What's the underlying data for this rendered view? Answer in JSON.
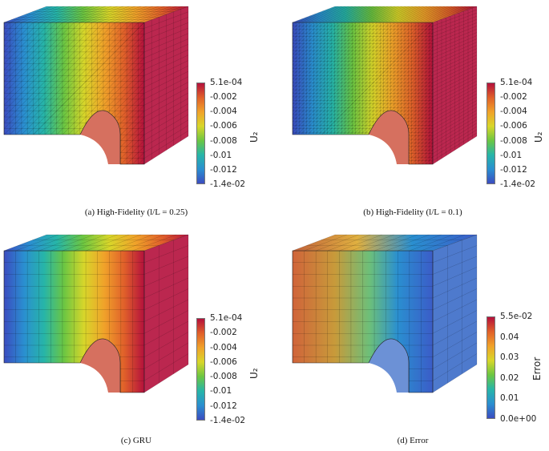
{
  "panels": [
    {
      "id": "a",
      "caption": "(a) High-Fidelity (l/L = 0.25)",
      "colorbar": {
        "ticks": [
          "5.1e-04",
          "-0.002",
          "-0.004",
          "-0.006",
          "-0.008",
          "-0.01",
          "-0.012",
          "-1.4e-02"
        ],
        "label": "U₂",
        "colormap": "blue-green-yellow-red",
        "stops": [
          "#3b4cc0",
          "#2a8fd0",
          "#27b5a8",
          "#6cc642",
          "#d8d62a",
          "#f0a22a",
          "#e0602a",
          "#b4103c"
        ]
      },
      "field": {
        "pattern": "gradient-x",
        "mesh": "fine-triangular"
      }
    },
    {
      "id": "b",
      "caption": "(b) High-Fidelity (l/L = 0.1)",
      "colorbar": {
        "ticks": [
          "5.1e-04",
          "-0.002",
          "-0.004",
          "-0.006",
          "-0.008",
          "-0.01",
          "-0.012",
          "-1.4e-02"
        ],
        "label": "U₂",
        "colormap": "blue-green-yellow-red",
        "stops": [
          "#3b4cc0",
          "#2a8fd0",
          "#27b5a8",
          "#6cc642",
          "#d8d62a",
          "#f0a22a",
          "#e0602a",
          "#b4103c"
        ]
      },
      "field": {
        "pattern": "gradient-x",
        "mesh": "very-fine-triangular"
      }
    },
    {
      "id": "c",
      "caption": "(c) GRU",
      "colorbar": {
        "ticks": [
          "5.1e-04",
          "-0.002",
          "-0.004",
          "-0.006",
          "-0.008",
          "-0.01",
          "-0.012",
          "-1.4e-02"
        ],
        "label": "U₂",
        "colormap": "blue-green-yellow-red",
        "stops": [
          "#3b4cc0",
          "#2a8fd0",
          "#27b5a8",
          "#6cc642",
          "#d8d62a",
          "#f0a22a",
          "#e0602a",
          "#b4103c"
        ]
      },
      "field": {
        "pattern": "gradient-x",
        "mesh": "coarse-hexahedral"
      }
    },
    {
      "id": "d",
      "caption": "(d) Error",
      "colorbar": {
        "ticks": [
          "5.5e-02",
          "0.04",
          "0.03",
          "0.02",
          "0.01",
          "0.0e+00"
        ],
        "label": "Error",
        "colormap": "blue-green-yellow-red",
        "stops": [
          "#3b4cc0",
          "#2a8fd0",
          "#27b5a8",
          "#6cc642",
          "#d8d62a",
          "#f0a22a",
          "#e0602a",
          "#b4103c"
        ]
      },
      "field": {
        "pattern": "error",
        "mesh": "coarse-hexahedral"
      }
    }
  ]
}
